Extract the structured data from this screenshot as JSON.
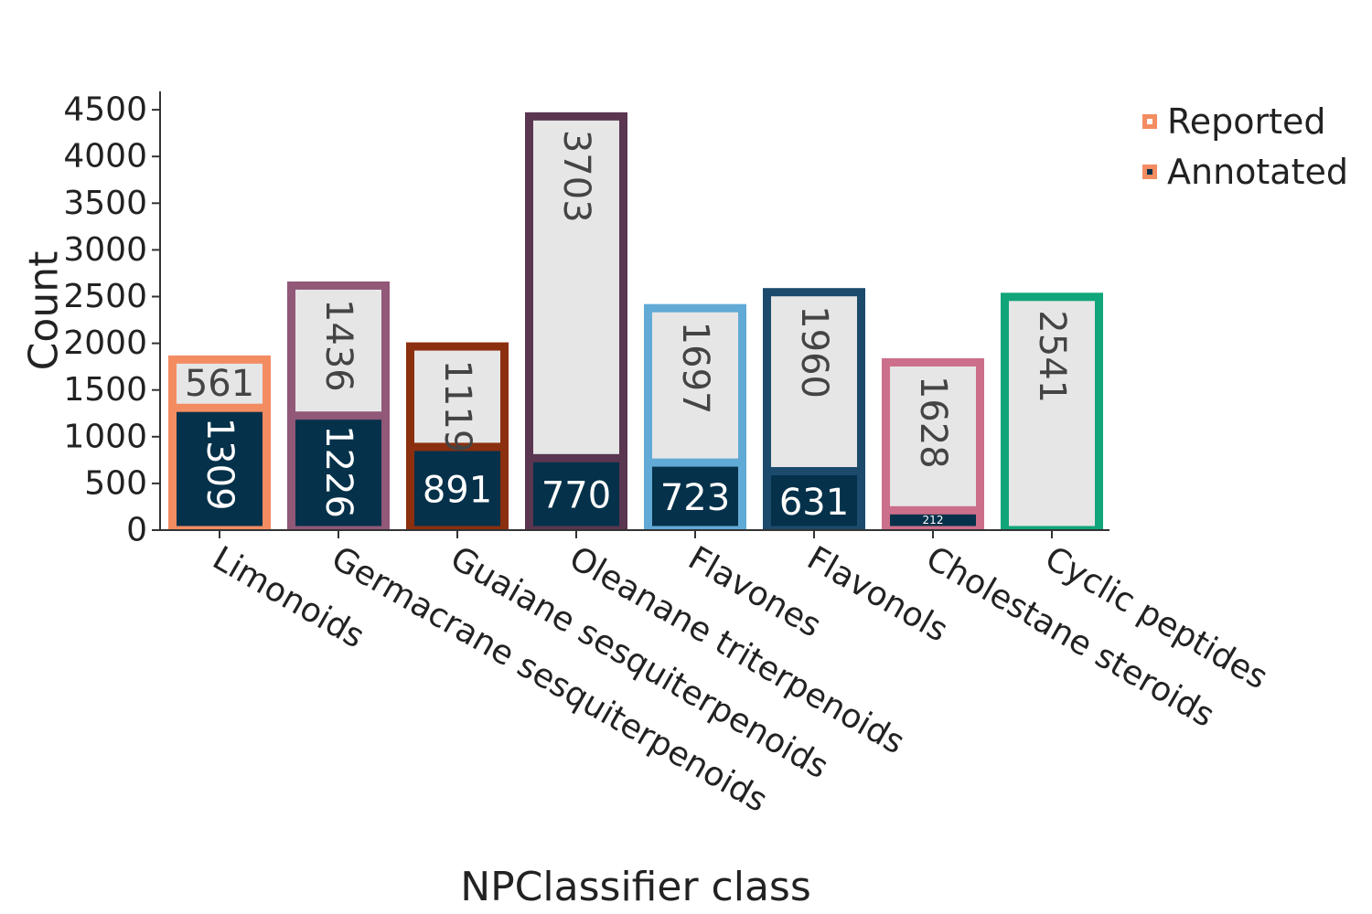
{
  "chart_data": {
    "type": "bar",
    "stacked": true,
    "categories": [
      "Limonoids",
      "Germacrane sesquiterpenoids",
      "Guaiane sesquiterpenoids",
      "Oleanane triterpenoids",
      "Flavones",
      "Flavonols",
      "Cholestane steroids",
      "Cyclic peptides"
    ],
    "series": [
      {
        "name": "Annotated",
        "values": [
          1309,
          1226,
          891,
          770,
          723,
          631,
          212,
          0
        ],
        "fill": "#05314a"
      },
      {
        "name": "Reported",
        "values": [
          561,
          1436,
          1119,
          3703,
          1697,
          1960,
          1628,
          2541
        ],
        "fill": "#e6e6e6"
      }
    ],
    "category_colors": [
      "#f48c62",
      "#915878",
      "#8c2f0f",
      "#5a3650",
      "#62aad6",
      "#1b4a6c",
      "#cc6f8a",
      "#10a57a"
    ],
    "xlabel": "NPClassifier class",
    "ylabel": "Count",
    "ylim": [
      0,
      4650
    ],
    "yticks": [
      0,
      500,
      1000,
      1500,
      2000,
      2500,
      3000,
      3500,
      4000,
      4500
    ],
    "grid": false,
    "legend": {
      "position": "top-right",
      "entries": [
        {
          "label": "Reported",
          "marker_fill": "#ffffff",
          "marker_border": "#f48c62"
        },
        {
          "label": "Annotated",
          "marker_fill": "#05314a",
          "marker_border": "#f48c62"
        }
      ]
    }
  }
}
